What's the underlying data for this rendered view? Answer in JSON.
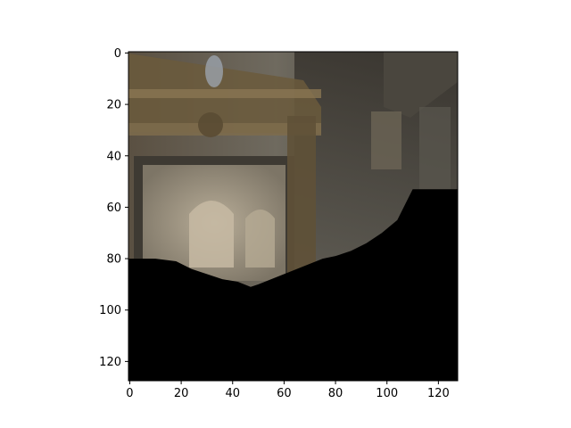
{
  "chart_data": {
    "type": "heatmap",
    "title": "",
    "xlabel": "",
    "ylabel": "",
    "image_size": [
      128,
      128
    ],
    "xlim": [
      -0.5,
      127.5
    ],
    "ylim": [
      127.5,
      -0.5
    ],
    "y_axis_inverted": true,
    "grid": false,
    "legend": "none",
    "x_ticks": [
      0,
      20,
      40,
      60,
      80,
      100,
      120
    ],
    "y_ticks": [
      0,
      20,
      40,
      60,
      80,
      100,
      120
    ],
    "x_tick_labels": [
      "0",
      "20",
      "40",
      "60",
      "80",
      "100",
      "120"
    ],
    "y_tick_labels": [
      "0",
      "20",
      "40",
      "60",
      "80",
      "100",
      "120"
    ],
    "image_content": "photo of an ornate interior (gilded cornice, stone wall, arched doorway); lower region masked black",
    "mask_color": "#000000",
    "mask_boundary": {
      "x": [
        0,
        10,
        18,
        24,
        30,
        36,
        42,
        47,
        50,
        55,
        60,
        65,
        70,
        75,
        80,
        86,
        92,
        98,
        104,
        110,
        128
      ],
      "y": [
        80,
        80,
        81,
        84,
        86,
        88,
        89,
        91,
        90,
        88,
        86,
        84,
        82,
        80,
        79,
        77,
        74,
        70,
        65,
        53,
        53
      ]
    }
  }
}
